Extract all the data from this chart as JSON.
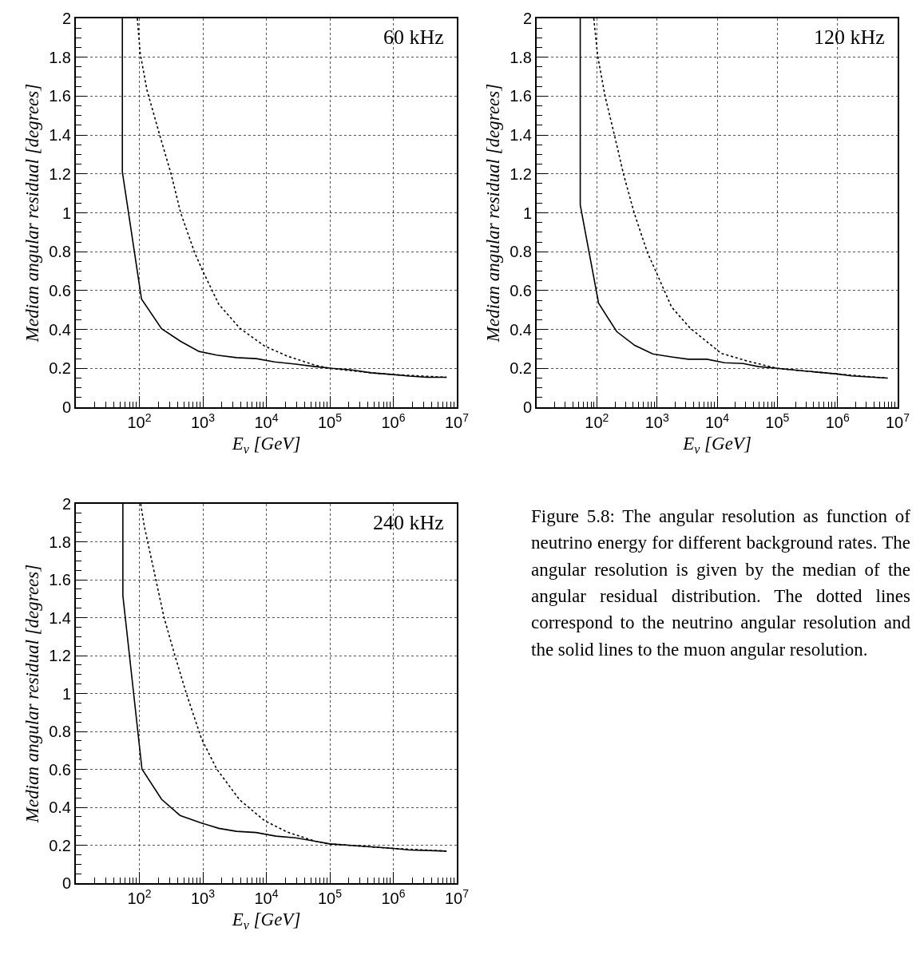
{
  "chart_data": [
    {
      "type": "line",
      "annotations": [
        "60 kHz"
      ],
      "xlabel": "E$_{ν}$ [GeV]",
      "ylabel": "Median angular residual [degrees]",
      "log": "x",
      "grid": true,
      "marker": "none",
      "xlim": [
        10,
        10000000
      ],
      "xticks": [
        {
          "value": 100,
          "label": "10$^{2}$"
        },
        {
          "value": 1000,
          "label": "10$^{3}$"
        },
        {
          "value": 10000,
          "label": "10$^{4}$"
        },
        {
          "value": 100000,
          "label": "10$^{5}$"
        },
        {
          "value": 1000000,
          "label": "10$^{6}$"
        },
        {
          "value": 10000000,
          "label": "10$^{7}$"
        }
      ],
      "ylim": [
        0,
        2
      ],
      "yticks": [
        0,
        0.2,
        0.4,
        0.6,
        0.8,
        1,
        1.2,
        1.4,
        1.6,
        1.8,
        2
      ],
      "series": [
        {
          "color": "#000000",
          "line_style": "solid",
          "x": [
            54,
            54,
            108,
            224,
            447,
            871,
            1660,
            3390,
            6920,
            13500,
            28800,
            58900,
            107000,
            219000,
            447000,
            1000000,
            1800000,
            3400000,
            6900000
          ],
          "values": [
            2,
            1.21,
            0.557,
            0.404,
            0.339,
            0.287,
            0.268,
            0.255,
            0.25,
            0.233,
            0.222,
            0.209,
            0.2,
            0.192,
            0.177,
            0.168,
            0.16,
            0.154,
            0.154
          ]
        },
        {
          "color": "#000000",
          "line_style": "dotted",
          "x": [
            93,
            103,
            132,
            209,
            316,
            447,
            741,
            1000,
            1780,
            3800,
            9330,
            21400,
            58900,
            100000,
            447000,
            1000000,
            6900000
          ],
          "values": [
            2,
            1.82,
            1.63,
            1.4,
            1.2,
            1.0,
            0.796,
            0.7,
            0.53,
            0.407,
            0.315,
            0.263,
            0.216,
            0.2,
            0.177,
            0.168,
            0.154
          ]
        }
      ]
    },
    {
      "type": "line",
      "annotations": [
        "120 kHz"
      ],
      "xlabel": "E$_{ν}$ [GeV]",
      "ylabel": "Median angular residual [degrees]",
      "log": "x",
      "grid": true,
      "marker": "none",
      "xlim": [
        10,
        10000000
      ],
      "xticks": [
        {
          "value": 100,
          "label": "10$^{2}$"
        },
        {
          "value": 1000,
          "label": "10$^{3}$"
        },
        {
          "value": 10000,
          "label": "10$^{4}$"
        },
        {
          "value": 100000,
          "label": "10$^{5}$"
        },
        {
          "value": 1000000,
          "label": "10$^{6}$"
        },
        {
          "value": 10000000,
          "label": "10$^{7}$"
        }
      ],
      "ylim": [
        0,
        2
      ],
      "yticks": [
        0,
        0.2,
        0.4,
        0.6,
        0.8,
        1,
        1.2,
        1.4,
        1.6,
        1.8,
        2
      ],
      "series": [
        {
          "color": "#000000",
          "line_style": "solid",
          "x": [
            53,
            53,
            107,
            214,
            427,
            851,
            1740,
            3310,
            6760,
            13200,
            26900,
            49000,
            100000,
            251000,
            1000000,
            1700000,
            6800000
          ],
          "values": [
            2,
            1.04,
            0.535,
            0.389,
            0.318,
            0.274,
            0.259,
            0.247,
            0.247,
            0.229,
            0.225,
            0.209,
            0.2,
            0.188,
            0.171,
            0.161,
            0.15
          ]
        },
        {
          "color": "#000000",
          "line_style": "dotted",
          "x": [
            89,
            103,
            137,
            196,
            277,
            417,
            692,
            1000,
            1740,
            3550,
            11700,
            33100,
            100000,
            251000,
            1000000,
            6800000
          ],
          "values": [
            2,
            1.81,
            1.6,
            1.4,
            1.2,
            1.0,
            0.796,
            0.686,
            0.516,
            0.407,
            0.277,
            0.236,
            0.2,
            0.188,
            0.171,
            0.15
          ]
        }
      ]
    },
    {
      "type": "line",
      "annotations": [
        "240 kHz"
      ],
      "xlabel": "E$_{ν}$ [GeV]",
      "ylabel": "Median angular residual [degrees]",
      "log": "x",
      "grid": true,
      "marker": "none",
      "xlim": [
        10,
        10000000
      ],
      "xticks": [
        {
          "value": 100,
          "label": "10$^{2}$"
        },
        {
          "value": 1000,
          "label": "10$^{3}$"
        },
        {
          "value": 10000,
          "label": "10$^{4}$"
        },
        {
          "value": 100000,
          "label": "10$^{5}$"
        },
        {
          "value": 1000000,
          "label": "10$^{6}$"
        },
        {
          "value": 10000000,
          "label": "10$^{7}$"
        }
      ],
      "ylim": [
        0,
        2
      ],
      "yticks": [
        0,
        0.2,
        0.4,
        0.6,
        0.8,
        1,
        1.2,
        1.4,
        1.6,
        1.8,
        2
      ],
      "series": [
        {
          "color": "#000000",
          "line_style": "solid",
          "x": [
            55,
            55,
            110,
            224,
            437,
            912,
            1780,
            3390,
            6920,
            14100,
            28800,
            58900,
            100000,
            240000,
            1000000,
            1800000,
            6900000
          ],
          "values": [
            2,
            1.516,
            0.601,
            0.442,
            0.357,
            0.319,
            0.289,
            0.273,
            0.267,
            0.248,
            0.239,
            0.221,
            0.207,
            0.198,
            0.183,
            0.175,
            0.169
          ]
        },
        {
          "color": "#000000",
          "line_style": "dotted",
          "x": [
            105,
            120,
            182,
            245,
            363,
            550,
            955,
            1660,
            3800,
            9330,
            21400,
            58900,
            100000,
            240000,
            1000000,
            6900000
          ],
          "values": [
            2,
            1.88,
            1.6,
            1.4,
            1.2,
            1.0,
            0.76,
            0.601,
            0.439,
            0.33,
            0.269,
            0.221,
            0.207,
            0.198,
            0.183,
            0.169
          ]
        }
      ]
    },
    {
      "type": "other",
      "annotations": [
        "Figure 5.8: The angular resolution as function of neutrino energy for different background rates. The angular resolution is given by the median of the angular residual distribution. The dotted lines correspond to the neutrino angular resolution and the solid lines to the muon angular resolution."
      ]
    }
  ]
}
